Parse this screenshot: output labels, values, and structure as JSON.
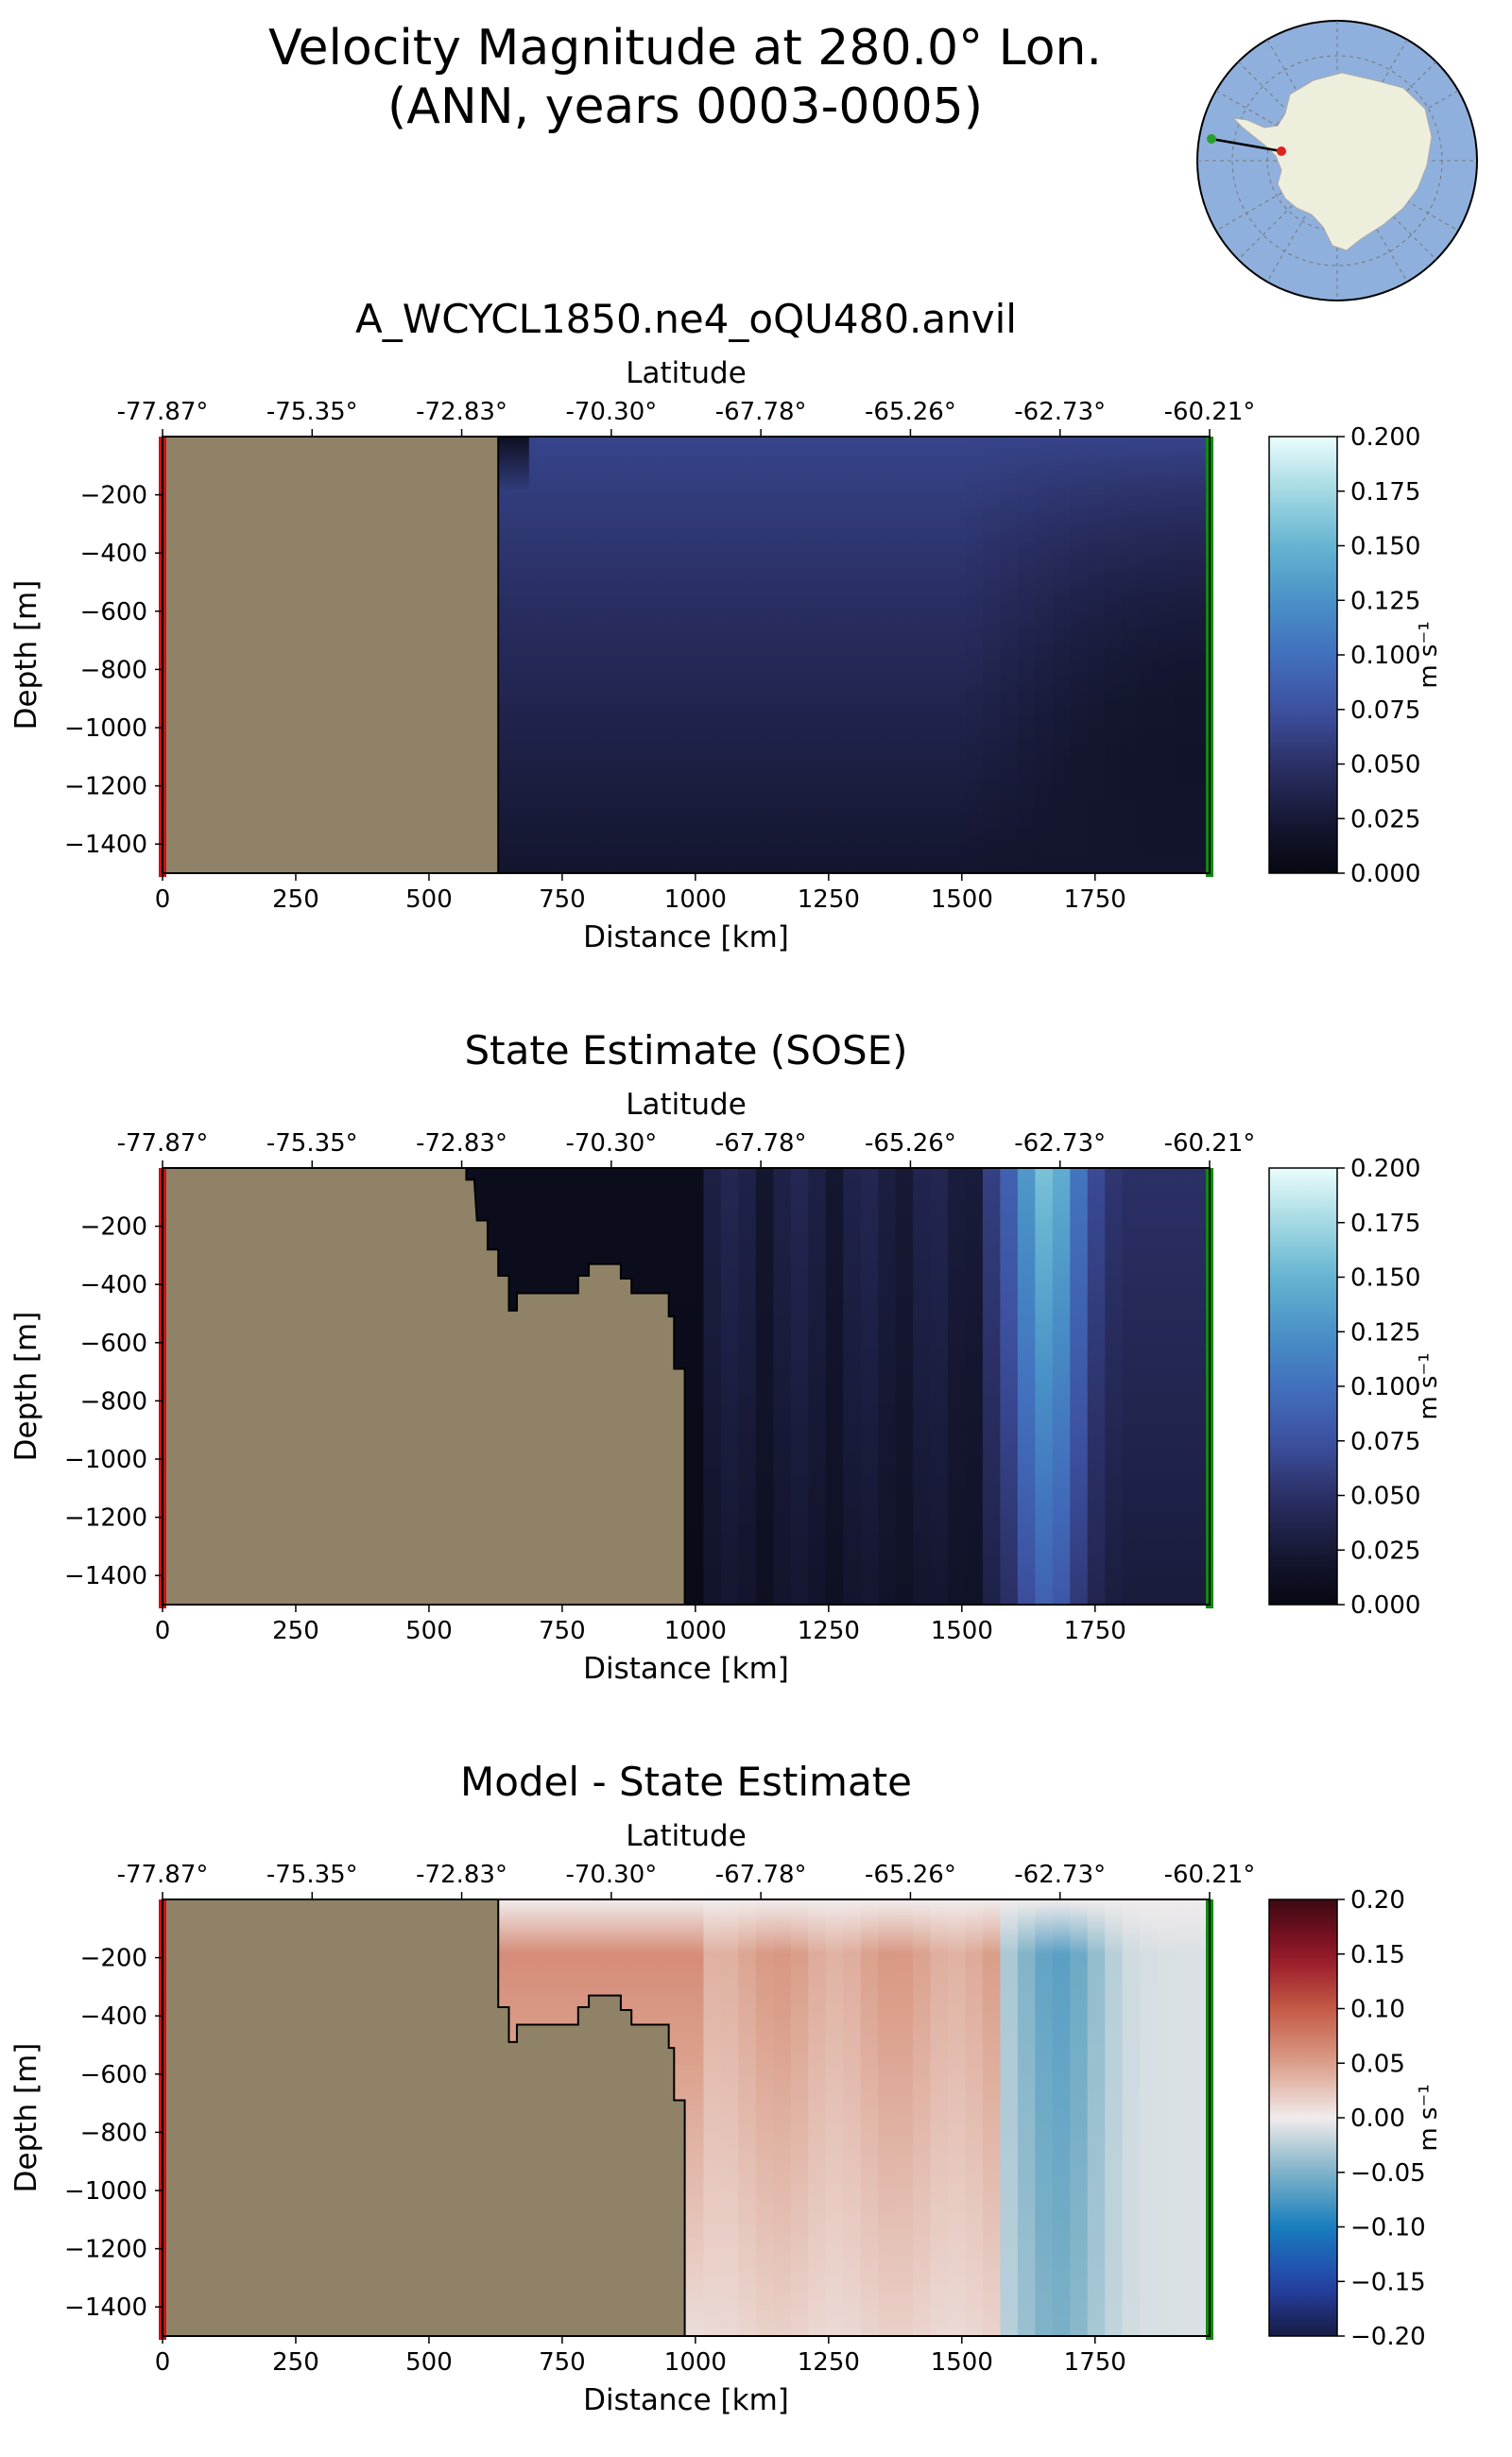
{
  "figure": {
    "title_line1": "Velocity Magnitude at 280.0° Lon.",
    "title_line2": "(ANN, years 0003-0005)"
  },
  "inset_map": {
    "description_colors": {
      "ocean": "#8fb0dc",
      "land": "#eeeedd",
      "track": "#000000",
      "start_marker": "#2a9d2a",
      "end_marker": "#e0221c"
    }
  },
  "chart_data": [
    {
      "type": "heatmap",
      "title": "A_WCYCL1850.ne4_oQU480.anvil",
      "xlabel": "Distance [km]",
      "ylabel": "Depth [m]",
      "top_axis_label": "Latitude",
      "x_ticks": [
        0,
        250,
        500,
        750,
        1000,
        1250,
        1500,
        1750
      ],
      "y_ticks": [
        -200,
        -400,
        -600,
        -800,
        -1000,
        -1200,
        -1400
      ],
      "y_tick_labels": [
        "−200",
        "−400",
        "−600",
        "−800",
        "−1000",
        "−1200",
        "−1400"
      ],
      "lat_ticks": [
        "-77.87°",
        "-75.35°",
        "-72.83°",
        "-70.30°",
        "-67.78°",
        "-65.26°",
        "-62.73°",
        "-60.21°"
      ],
      "xlim": [
        0,
        1965
      ],
      "ylim": [
        -1500,
        0
      ],
      "land_edge_km": [
        [
          0,
          630
        ],
        [
          -1500,
          630
        ]
      ],
      "colorbar": {
        "label": "m s⁻¹",
        "range": [
          0.0,
          0.2
        ],
        "tick_labels": [
          "0.000",
          "0.025",
          "0.050",
          "0.075",
          "0.100",
          "0.125",
          "0.150",
          "0.175",
          "0.200"
        ],
        "colormap": "ice"
      },
      "ocean_color_description": "surface ~0.05–0.07 m/s, deep ~0.01–0.03 m/s"
    },
    {
      "type": "heatmap",
      "title": "State Estimate (SOSE)",
      "xlabel": "Distance [km]",
      "ylabel": "Depth [m]",
      "top_axis_label": "Latitude",
      "x_ticks": [
        0,
        250,
        500,
        750,
        1000,
        1250,
        1500,
        1750
      ],
      "y_ticks": [
        -200,
        -400,
        -600,
        -800,
        -1000,
        -1200,
        -1400
      ],
      "y_tick_labels": [
        "−200",
        "−400",
        "−600",
        "−800",
        "−1000",
        "−1200",
        "−1400"
      ],
      "lat_ticks": [
        "-77.87°",
        "-75.35°",
        "-72.83°",
        "-70.30°",
        "-67.78°",
        "-65.26°",
        "-62.73°",
        "-60.21°"
      ],
      "xlim": [
        0,
        1965
      ],
      "ylim": [
        -1500,
        0
      ],
      "colorbar": {
        "label": "m s⁻¹",
        "range": [
          0.0,
          0.2
        ],
        "tick_labels": [
          "0.000",
          "0.025",
          "0.050",
          "0.075",
          "0.100",
          "0.125",
          "0.150",
          "0.175",
          "0.200"
        ],
        "colormap": "ice"
      },
      "ocean_color_description": "max ~0.16 m/s near 1650 km surface"
    },
    {
      "type": "heatmap",
      "title": "Model - State Estimate",
      "xlabel": "Distance [km]",
      "ylabel": "Depth [m]",
      "top_axis_label": "Latitude",
      "x_ticks": [
        0,
        250,
        500,
        750,
        1000,
        1250,
        1500,
        1750
      ],
      "y_ticks": [
        -200,
        -400,
        -600,
        -800,
        -1000,
        -1200,
        -1400
      ],
      "y_tick_labels": [
        "−200",
        "−400",
        "−600",
        "−800",
        "−1000",
        "−1200",
        "−1400"
      ],
      "lat_ticks": [
        "-77.87°",
        "-75.35°",
        "-72.83°",
        "-70.30°",
        "-67.78°",
        "-65.26°",
        "-62.73°",
        "-60.21°"
      ],
      "xlim": [
        0,
        1965
      ],
      "ylim": [
        -1500,
        0
      ],
      "colorbar": {
        "label": "m s⁻¹",
        "range": [
          -0.2,
          0.2
        ],
        "tick_labels": [
          "0.20",
          "0.15",
          "0.10",
          "0.05",
          "0.00",
          "−0.05",
          "−0.10",
          "−0.15",
          "−0.20"
        ],
        "colormap": "balance"
      }
    }
  ],
  "colors": {
    "land": "#8f8266",
    "left_edge": "#cc1111",
    "right_edge": "#118811"
  }
}
